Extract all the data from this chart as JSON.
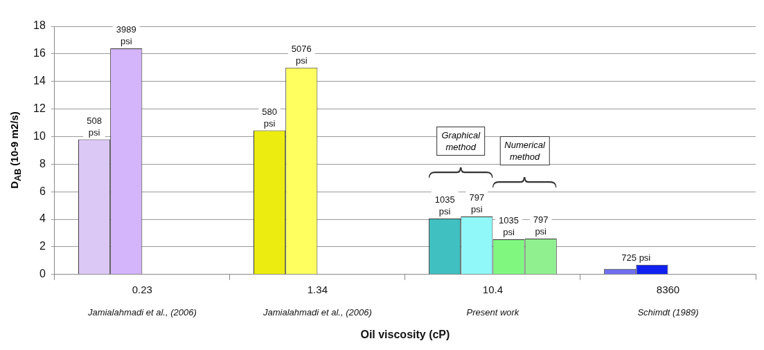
{
  "chart_data": {
    "type": "bar",
    "xlabel": "Oil viscosity (cP)",
    "ylabel": "D$_{AB}$ (10-9 m2/s)",
    "categories": [
      "0.23",
      "1.34",
      "10.4",
      "8360"
    ],
    "series": [
      {
        "colors": [
          "#dcc8f5",
          "#ecec10",
          "#40c0c0",
          "#7070f0"
        ],
        "values": [
          9.8,
          10.45,
          4.05,
          0.4
        ]
      },
      {
        "colors": [
          "#d4b4fa",
          "#ffff60",
          "#90f8f8",
          "#1020f0"
        ],
        "values": [
          16.4,
          15.0,
          4.2,
          0.7
        ]
      },
      {
        "colors": [
          null,
          null,
          "#80f880",
          null
        ],
        "values": [
          null,
          null,
          2.55,
          null
        ]
      },
      {
        "colors": [
          null,
          null,
          "#90f090",
          null
        ],
        "values": [
          null,
          null,
          2.6,
          null
        ]
      }
    ],
    "ylim": [
      0,
      18
    ],
    "yticks": [
      0,
      2,
      4,
      6,
      8,
      10,
      12,
      14,
      16,
      18
    ],
    "grid": "y",
    "legend": false,
    "annotations": [
      "Jamialahmadi et al., (2006)",
      "Jamialahmadi et al., (2006)",
      "Present work",
      "Schimdt (1989)",
      "Graphical method",
      "Numerical method",
      "508 psi",
      "3989 psi",
      "580 psi",
      "5076 psi",
      "1035 psi",
      "797 psi",
      "1035 psi",
      "797 psi",
      "725 psi"
    ]
  }
}
